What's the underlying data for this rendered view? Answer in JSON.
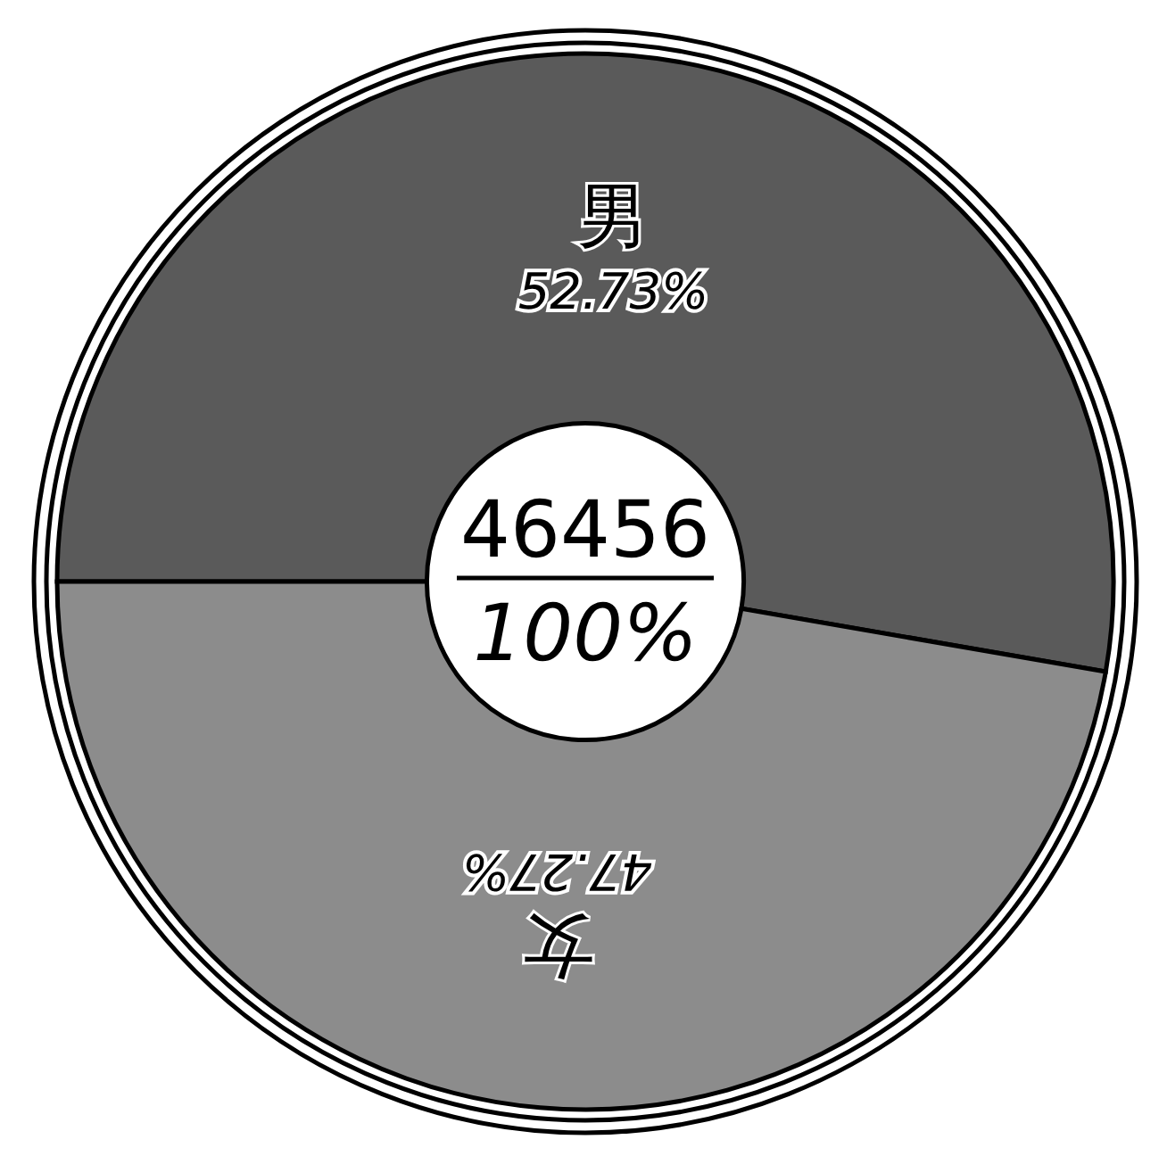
{
  "chart_data": {
    "type": "donut",
    "categories": [
      "男",
      "女"
    ],
    "values": [
      52.73,
      47.27
    ],
    "value_labels": [
      "52.73%",
      "47.27%"
    ],
    "colors": [
      "#5a5a5a",
      "#8c8c8c"
    ],
    "annotations": [
      "46456",
      "100%"
    ]
  }
}
